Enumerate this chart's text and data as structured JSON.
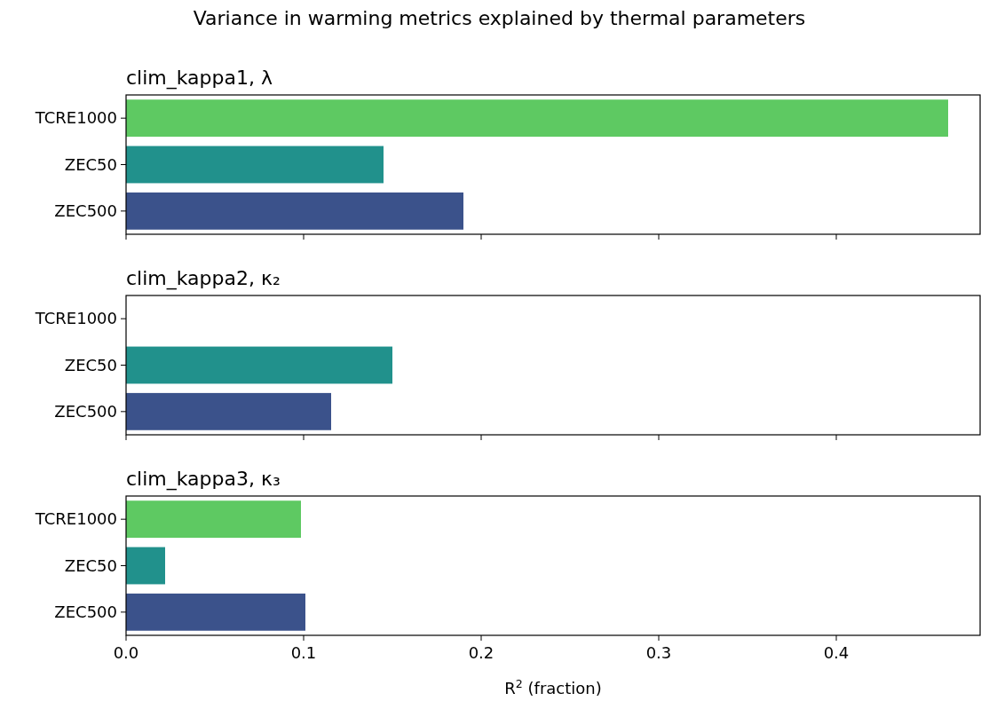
{
  "chart_data": [
    {
      "type": "bar",
      "orientation": "horizontal",
      "title": "Variance in warming metrics explained by thermal parameters",
      "subtitle": "clim_kappa1, λ",
      "categories": [
        "TCRE1000",
        "ZEC50",
        "ZEC500"
      ],
      "values": [
        0.463,
        0.145,
        0.19
      ],
      "colors": [
        "#5ec962",
        "#21918c",
        "#3b528b"
      ],
      "xlim": [
        0,
        0.481
      ],
      "xticks": [
        {
          "value": 0,
          "label": null
        },
        {
          "value": 0.1,
          "label": null
        },
        {
          "value": 0.2,
          "label": null
        },
        {
          "value": 0.3,
          "label": null
        },
        {
          "value": 0.4,
          "label": null
        }
      ],
      "tick_labels": "y"
    },
    {
      "type": "bar",
      "orientation": "horizontal",
      "subtitle": "clim_kappa2, κ₂",
      "categories": [
        "TCRE1000",
        "ZEC50",
        "ZEC500"
      ],
      "values": [
        null,
        0.15,
        0.1155
      ],
      "colors": [
        null,
        "#21918c",
        "#3b528b"
      ],
      "xlim": [
        0,
        0.481
      ],
      "xticks": [
        {
          "value": 0,
          "label": null
        },
        {
          "value": 0.1,
          "label": null
        },
        {
          "value": 0.2,
          "label": null
        },
        {
          "value": 0.3,
          "label": null
        },
        {
          "value": 0.4,
          "label": null
        }
      ],
      "tick_labels": "y"
    },
    {
      "type": "bar",
      "orientation": "horizontal",
      "subtitle": "clim_kappa3, κ₃",
      "xlabel": "R$^{2}$ (fraction)",
      "categories": [
        "TCRE1000",
        "ZEC50",
        "ZEC500"
      ],
      "values": [
        0.0985,
        0.022,
        0.101
      ],
      "colors": [
        "#5ec962",
        "#21918c",
        "#3b528b"
      ],
      "xlim": [
        0,
        0.481
      ],
      "xticks": [
        {
          "value": 0,
          "label": "0.0"
        },
        {
          "value": 0.1,
          "label": "0.1"
        },
        {
          "value": 0.2,
          "label": "0.2"
        },
        {
          "value": 0.3,
          "label": "0.3"
        },
        {
          "value": 0.4,
          "label": "0.4"
        }
      ]
    }
  ]
}
